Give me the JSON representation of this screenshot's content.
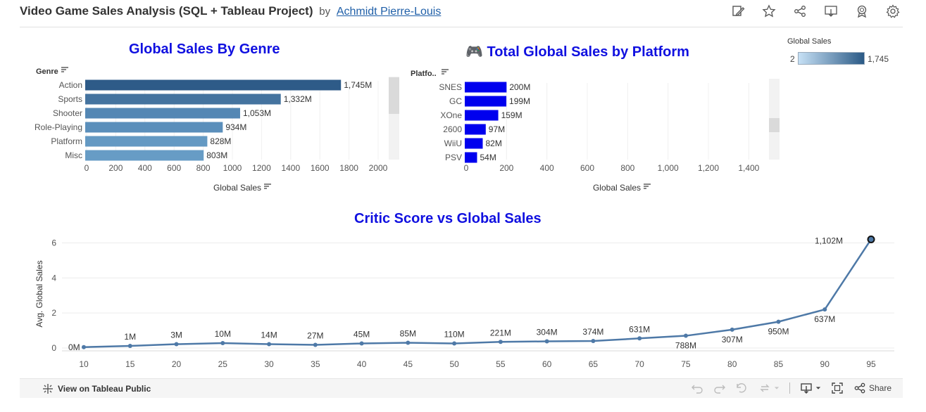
{
  "header": {
    "title": "Video Game Sales Analysis (SQL + Tableau Project)",
    "by": "by",
    "author": "Achmidt Pierre-Louis",
    "icons": [
      "edit-icon",
      "star-icon",
      "share-icon",
      "download-icon",
      "award-icon",
      "gear-icon"
    ]
  },
  "legend": {
    "title": "Global Sales",
    "min": "2",
    "max": "1,745",
    "low_color": "#c6e0f5",
    "high_color": "#2b5a86"
  },
  "chart_data": [
    {
      "type": "bar",
      "orientation": "horizontal",
      "title": "Global Sales By Genre",
      "category_header": "Genre",
      "xlabel": "Global Sales",
      "categories": [
        "Action",
        "Sports",
        "Shooter",
        "Role-Playing",
        "Platform",
        "Misc"
      ],
      "values": [
        1745,
        1332,
        1053,
        934,
        828,
        803
      ],
      "value_labels": [
        "1,745M",
        "1,332M",
        "1,053M",
        "934M",
        "828M",
        "803M"
      ],
      "colors": [
        "#2e5b88",
        "#44739f",
        "#5487b4",
        "#5b8fbb",
        "#6499c3",
        "#679cc5"
      ],
      "xticks": [
        "0",
        "200",
        "400",
        "600",
        "800",
        "1000",
        "1200",
        "1400",
        "1600",
        "1800",
        "2000"
      ],
      "xlim": [
        0,
        2000
      ]
    },
    {
      "type": "bar",
      "orientation": "horizontal",
      "title": "🎮 Total Global Sales by Platform",
      "category_header": "Platfo..",
      "xlabel": "Global Sales",
      "categories": [
        "SNES",
        "GC",
        "XOne",
        "2600",
        "WiiU",
        "PSV"
      ],
      "values": [
        200,
        199,
        159,
        97,
        82,
        54
      ],
      "value_labels": [
        "200M",
        "199M",
        "159M",
        "97M",
        "82M",
        "54M"
      ],
      "color": "#0000ee",
      "xticks": [
        "0",
        "200",
        "400",
        "600",
        "800",
        "1,000",
        "1,200",
        "1,400"
      ],
      "xlim": [
        0,
        1500
      ]
    },
    {
      "type": "line",
      "title": "Critic Score vs Global Sales",
      "ylabel": "Avg. Global Sales",
      "x": [
        10,
        15,
        20,
        25,
        30,
        35,
        40,
        45,
        50,
        55,
        60,
        65,
        70,
        75,
        80,
        85,
        90,
        95
      ],
      "y": [
        0.05,
        0.12,
        0.22,
        0.28,
        0.22,
        0.18,
        0.26,
        0.3,
        0.26,
        0.35,
        0.38,
        0.4,
        0.55,
        0.7,
        1.05,
        1.5,
        2.2,
        6.2
      ],
      "point_labels": [
        "0M",
        "1M",
        "3M",
        "10M",
        "14M",
        "27M",
        "45M",
        "85M",
        "110M",
        "221M",
        "304M",
        "374M",
        "631M",
        "788M",
        "307M",
        "950M",
        "637M",
        "1,102M"
      ],
      "label_below": [
        false,
        false,
        false,
        false,
        false,
        false,
        false,
        false,
        false,
        false,
        false,
        false,
        false,
        true,
        true,
        true,
        true,
        false
      ],
      "xticks": [
        "10",
        "15",
        "20",
        "25",
        "30",
        "35",
        "40",
        "45",
        "50",
        "55",
        "60",
        "65",
        "70",
        "75",
        "80",
        "85",
        "90",
        "95"
      ],
      "yticks": [
        "0",
        "2",
        "4",
        "6"
      ],
      "ylim": [
        0,
        6.5
      ],
      "color": "#4e79a7"
    }
  ],
  "footer": {
    "view_public": "View on Tableau Public",
    "share": "Share"
  }
}
